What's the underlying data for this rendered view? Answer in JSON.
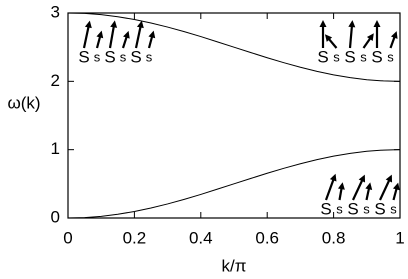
{
  "chart_data": {
    "type": "line",
    "x_label": "k/π",
    "y_label": "ω(k)",
    "x": [
      0,
      0.05,
      0.1,
      0.15,
      0.2,
      0.25,
      0.3,
      0.35,
      0.4,
      0.45,
      0.5,
      0.55,
      0.6,
      0.65,
      0.7,
      0.75,
      0.8,
      0.85,
      0.9,
      0.95,
      1
    ],
    "series": [
      {
        "color": "#000000",
        "values": [
          3,
          2.994,
          2.976,
          2.945,
          2.905,
          2.854,
          2.794,
          2.727,
          2.655,
          2.578,
          2.5,
          2.422,
          2.345,
          2.273,
          2.206,
          2.146,
          2.095,
          2.055,
          2.024,
          2.006,
          2
        ]
      },
      {
        "color": "#000000",
        "values": [
          0,
          0.006,
          0.024,
          0.055,
          0.095,
          0.146,
          0.206,
          0.273,
          0.345,
          0.422,
          0.5,
          0.578,
          0.655,
          0.727,
          0.794,
          0.854,
          0.905,
          0.945,
          0.976,
          0.994,
          1
        ]
      }
    ],
    "xlim": [
      0,
      1
    ],
    "xticks": [
      0,
      0.2,
      0.4,
      0.6,
      0.8,
      1
    ],
    "ylim": [
      0,
      3
    ],
    "yticks": [
      0,
      1,
      2,
      3
    ],
    "annotations": [
      {
        "labels": [
          "S",
          "s",
          "S",
          "s",
          "S",
          "s"
        ]
      },
      {
        "labels": [
          "S",
          "s",
          "S",
          "s",
          "S",
          "s"
        ]
      },
      {
        "labels": [
          "S",
          "s",
          "S",
          "s",
          "S",
          "s"
        ]
      }
    ]
  }
}
